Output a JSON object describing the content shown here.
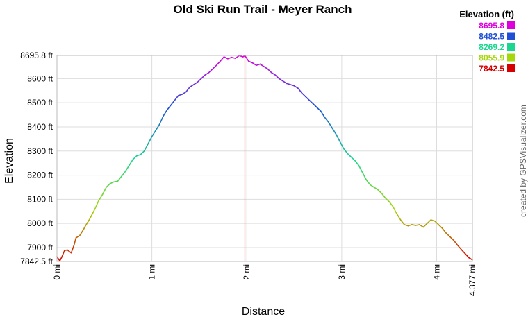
{
  "chart_data": {
    "type": "line",
    "title": "Old Ski Run Trail - Meyer Ranch",
    "xlabel": "Distance",
    "ylabel": "Elevation",
    "credit": "created by GPSVisualizer.com",
    "x_unit": "mi",
    "y_unit": "ft",
    "xlim": [
      0,
      4.377
    ],
    "ylim": [
      7842.5,
      8695.8
    ],
    "x_ticks": [
      {
        "value": 0,
        "label": "0 mi"
      },
      {
        "value": 1,
        "label": "1 mi"
      },
      {
        "value": 2,
        "label": "2 mi"
      },
      {
        "value": 3,
        "label": "3 mi"
      },
      {
        "value": 4,
        "label": "4 mi"
      },
      {
        "value": 4.377,
        "label": "4.377 mi"
      }
    ],
    "y_ticks": [
      {
        "value": 7842.5,
        "label": "7842.5 ft"
      },
      {
        "value": 7900,
        "label": "7900 ft"
      },
      {
        "value": 8000,
        "label": "8000 ft"
      },
      {
        "value": 8100,
        "label": "8100 ft"
      },
      {
        "value": 8200,
        "label": "8200 ft"
      },
      {
        "value": 8300,
        "label": "8300 ft"
      },
      {
        "value": 8400,
        "label": "8400 ft"
      },
      {
        "value": 8500,
        "label": "8500 ft"
      },
      {
        "value": 8600,
        "label": "8600 ft"
      },
      {
        "value": 8695.8,
        "label": "8695.8 ft"
      }
    ],
    "grid": true,
    "marker_line_x": 1.98,
    "marker_line_color": "#e06060",
    "legend": {
      "title": "Elevation (ft)",
      "position": "top-right",
      "items": [
        {
          "label": "8695.8",
          "color": "#dd00dd"
        },
        {
          "label": "8482.5",
          "color": "#1e4fd6"
        },
        {
          "label": "8269.2",
          "color": "#19d690"
        },
        {
          "label": "8055.9",
          "color": "#a6d60c"
        },
        {
          "label": "7842.5",
          "color": "#d60000"
        }
      ]
    },
    "series": [
      {
        "x": [
          0.0,
          0.03,
          0.05,
          0.08,
          0.11,
          0.15,
          0.18,
          0.2,
          0.24,
          0.28,
          0.3,
          0.34,
          0.38,
          0.4,
          0.44,
          0.48,
          0.52,
          0.56,
          0.6,
          0.64,
          0.68,
          0.72,
          0.76,
          0.8,
          0.84,
          0.88,
          0.92,
          0.96,
          1.0,
          1.04,
          1.08,
          1.12,
          1.16,
          1.2,
          1.24,
          1.28,
          1.32,
          1.36,
          1.4,
          1.44,
          1.48,
          1.52,
          1.56,
          1.6,
          1.64,
          1.68,
          1.72,
          1.76,
          1.8,
          1.84,
          1.88,
          1.92,
          1.96,
          1.98,
          2.02,
          2.06,
          2.1,
          2.14,
          2.18,
          2.22,
          2.26,
          2.3,
          2.34,
          2.38,
          2.42,
          2.46,
          2.5,
          2.54,
          2.58,
          2.62,
          2.66,
          2.7,
          2.74,
          2.78,
          2.82,
          2.86,
          2.9,
          2.94,
          2.98,
          3.02,
          3.06,
          3.1,
          3.14,
          3.18,
          3.22,
          3.26,
          3.3,
          3.34,
          3.38,
          3.42,
          3.46,
          3.5,
          3.54,
          3.58,
          3.62,
          3.66,
          3.7,
          3.74,
          3.78,
          3.82,
          3.86,
          3.9,
          3.94,
          3.98,
          4.02,
          4.06,
          4.1,
          4.14,
          4.18,
          4.22,
          4.26,
          4.3,
          4.34,
          4.377
        ],
        "y": [
          7862,
          7845,
          7860,
          7888,
          7890,
          7878,
          7910,
          7940,
          7950,
          7975,
          7990,
          8015,
          8045,
          8060,
          8095,
          8120,
          8150,
          8165,
          8172,
          8175,
          8195,
          8215,
          8240,
          8265,
          8280,
          8285,
          8300,
          8330,
          8360,
          8385,
          8410,
          8445,
          8470,
          8490,
          8510,
          8530,
          8535,
          8545,
          8565,
          8575,
          8585,
          8600,
          8615,
          8625,
          8640,
          8655,
          8672,
          8690,
          8682,
          8688,
          8684,
          8695,
          8690,
          8695,
          8672,
          8665,
          8655,
          8660,
          8650,
          8640,
          8625,
          8615,
          8600,
          8590,
          8580,
          8575,
          8570,
          8560,
          8540,
          8525,
          8510,
          8495,
          8480,
          8465,
          8440,
          8420,
          8395,
          8370,
          8340,
          8310,
          8290,
          8275,
          8260,
          8240,
          8210,
          8180,
          8160,
          8150,
          8140,
          8125,
          8105,
          8090,
          8070,
          8040,
          8015,
          7995,
          7990,
          7995,
          7992,
          7995,
          7985,
          8000,
          8015,
          8010,
          7995,
          7980,
          7960,
          7945,
          7930,
          7910,
          7892,
          7875,
          7858,
          7849
        ]
      }
    ]
  }
}
